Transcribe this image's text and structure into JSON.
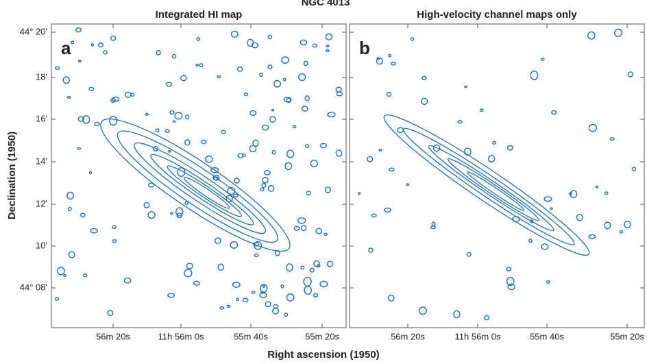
{
  "figure": {
    "title": "NGC 4013",
    "ylabel": "Declination (1950)",
    "xlabel": "Right ascension (1950)",
    "yticks": [
      "44° 20'",
      "18'",
      "16'",
      "14'",
      "12'",
      "10'",
      "44° 08'"
    ],
    "panels": [
      {
        "letter": "a",
        "title": "Integrated HI map",
        "xticks": [
          "56m 20s",
          "11h 56m 0s",
          "55m 40s",
          "55m 20s"
        ]
      },
      {
        "letter": "b",
        "title": "High-velocity channel maps only",
        "xticks": [
          "56m 20s",
          "11h 56m 0s",
          "55m 40s",
          "55m 20s"
        ]
      }
    ]
  }
}
